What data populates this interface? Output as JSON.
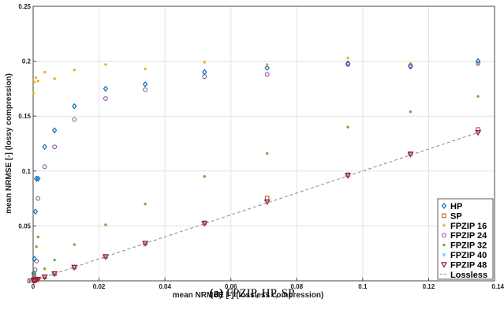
{
  "caption": {
    "label": "(a)",
    "text": "FPZIP, HP, SP"
  },
  "chart_data": {
    "type": "scatter",
    "xlabel": "mean NRMSE [-] (lossless compression)",
    "ylabel": "mean NRMSE [-] (lossy compression)",
    "xlim": [
      0,
      0.14
    ],
    "ylim": [
      0,
      0.25
    ],
    "xticks": [
      0,
      0.02,
      0.04,
      0.06,
      0.08,
      0.1,
      0.12,
      0.14
    ],
    "xtick_labels": [
      "0",
      "0.02",
      "0.04",
      "0.06",
      "0.08",
      "0.1",
      "0.12",
      "0.14"
    ],
    "yticks": [
      0,
      0.05,
      0.1,
      0.15,
      0.2,
      0.25
    ],
    "ytick_labels": [
      "0",
      "0.05",
      "0.1",
      "0.15",
      "0.2",
      "0.25"
    ],
    "grid": true,
    "legend": "lower-right",
    "series": [
      {
        "name": "HP",
        "color": "#0072BD",
        "marker": "diamond",
        "x": [
          0.0001,
          0.0002,
          0.0004,
          0.0007,
          0.001,
          0.0015,
          0.0035,
          0.0065,
          0.0125,
          0.022,
          0.034,
          0.052,
          0.071,
          0.0955,
          0.1145,
          0.135
        ],
        "y": [
          0.002,
          0.007,
          0.02,
          0.063,
          0.093,
          0.093,
          0.122,
          0.137,
          0.159,
          0.175,
          0.179,
          0.19,
          0.194,
          0.198,
          0.195,
          0.2
        ]
      },
      {
        "name": "SP",
        "color": "#D95319",
        "marker": "square",
        "x": [
          0.0001,
          0.0003,
          0.0006,
          0.001,
          0.0015,
          0.0035,
          0.0065,
          0.0125,
          0.022,
          0.034,
          0.052,
          0.071,
          0.0955,
          0.1145,
          0.135
        ],
        "y": [
          0.0002,
          0.0005,
          0.0008,
          0.0012,
          0.0016,
          0.0035,
          0.0066,
          0.0125,
          0.0222,
          0.0342,
          0.0528,
          0.0755,
          0.0966,
          0.1158,
          0.1378
        ]
      },
      {
        "name": "FPZIP 16",
        "color": "#EDB120",
        "marker": "point",
        "x": [
          0.0001,
          0.0004,
          0.0008,
          0.0015,
          0.0035,
          0.0065,
          0.0125,
          0.022,
          0.034,
          0.052,
          0.071,
          0.0955,
          0.1145,
          0.135
        ],
        "y": [
          0.171,
          0.181,
          0.185,
          0.182,
          0.19,
          0.184,
          0.192,
          0.197,
          0.193,
          0.199,
          0.197,
          0.203,
          0.198,
          0.197
        ]
      },
      {
        "name": "FPZIP 24",
        "color": "#7E2F8E",
        "marker": "circle",
        "x": [
          0.0001,
          0.0003,
          0.0006,
          0.001,
          0.0015,
          0.0035,
          0.0065,
          0.0125,
          0.022,
          0.034,
          0.052,
          0.071,
          0.0955,
          0.1145,
          0.135
        ],
        "y": [
          0.002,
          0.005,
          0.01,
          0.018,
          0.075,
          0.104,
          0.122,
          0.147,
          0.166,
          0.174,
          0.186,
          0.188,
          0.197,
          0.196,
          0.198
        ]
      },
      {
        "name": "FPZIP 32",
        "color": "#77AC30",
        "marker": "point",
        "x": [
          0.0001,
          0.0003,
          0.0006,
          0.001,
          0.0015,
          0.0035,
          0.0065,
          0.0125,
          0.022,
          0.034,
          0.052,
          0.071,
          0.0955,
          0.1145,
          0.135
        ],
        "y": [
          0.001,
          0.004,
          0.008,
          0.031,
          0.04,
          0.011,
          0.019,
          0.033,
          0.051,
          0.07,
          0.095,
          0.116,
          0.14,
          0.154,
          0.168
        ]
      },
      {
        "name": "FPZIP 40",
        "color": "#4DBEEE",
        "marker": "x",
        "x": [
          0.0001,
          0.0003,
          0.0006,
          0.001,
          0.0015,
          0.0035,
          0.0065,
          0.0125,
          0.022,
          0.034,
          0.052,
          0.071,
          0.0955,
          0.1145,
          0.135
        ],
        "y": [
          0.0001,
          0.0004,
          0.0007,
          0.0011,
          0.0015,
          0.0034,
          0.0064,
          0.0123,
          0.0219,
          0.0341,
          0.0524,
          0.0722,
          0.0962,
          0.1155,
          0.1355
        ]
      },
      {
        "name": "FPZIP 48",
        "color": "#A2142F",
        "marker": "triangle-down",
        "x": [
          0.0001,
          0.0003,
          0.0006,
          0.001,
          0.0015,
          0.0035,
          0.0065,
          0.0125,
          0.022,
          0.034,
          0.052,
          0.071,
          0.0955,
          0.1145,
          0.135
        ],
        "y": [
          0.0001,
          0.0003,
          0.0006,
          0.001,
          0.0014,
          0.0034,
          0.0064,
          0.0123,
          0.0219,
          0.0341,
          0.0522,
          0.0718,
          0.0959,
          0.1152,
          0.135
        ]
      },
      {
        "name": "Lossless",
        "color": "#888888",
        "marker": "dashed-line",
        "x": [
          0,
          0.135
        ],
        "y": [
          0,
          0.135
        ]
      }
    ]
  }
}
